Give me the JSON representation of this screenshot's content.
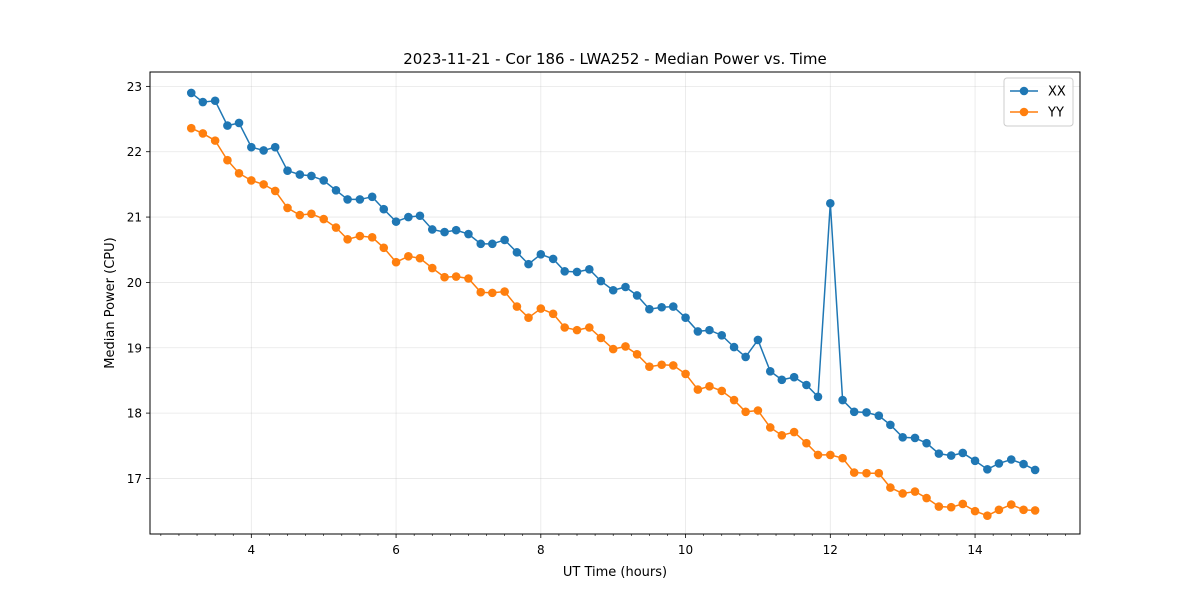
{
  "chart_data": {
    "type": "line",
    "title": "2023-11-21 - Cor 186 - LWA252 - Median Power vs. Time",
    "xlabel": "UT Time (hours)",
    "ylabel": "Median Power (CPU)",
    "xlim": [
      2.6,
      15.45
    ],
    "ylim": [
      16.15,
      23.22
    ],
    "xticks": [
      4,
      6,
      8,
      10,
      12,
      14
    ],
    "xtick_labels": [
      "4",
      "6",
      "8",
      "10",
      "12",
      "14"
    ],
    "yticks": [
      17,
      18,
      19,
      20,
      21,
      22,
      23
    ],
    "ytick_labels": [
      "17",
      "18",
      "19",
      "20",
      "21",
      "22",
      "23"
    ],
    "grid": true,
    "legend": "top-right",
    "x": [
      3.17,
      3.33,
      3.5,
      3.67,
      3.83,
      4.0,
      4.17,
      4.33,
      4.5,
      4.67,
      4.83,
      5.0,
      5.17,
      5.33,
      5.5,
      5.67,
      5.83,
      6.0,
      6.17,
      6.33,
      6.5,
      6.67,
      6.83,
      7.0,
      7.17,
      7.33,
      7.5,
      7.67,
      7.83,
      8.0,
      8.17,
      8.33,
      8.5,
      8.67,
      8.83,
      9.0,
      9.17,
      9.33,
      9.5,
      9.67,
      9.83,
      10.0,
      10.17,
      10.33,
      10.5,
      10.67,
      10.83,
      11.0,
      11.17,
      11.33,
      11.5,
      11.67,
      11.83,
      12.0,
      12.17,
      12.33,
      12.5,
      12.67,
      12.83,
      13.0,
      13.17,
      13.33,
      13.5,
      13.67,
      13.83,
      14.0,
      14.17,
      14.33,
      14.5,
      14.67,
      14.83
    ],
    "series": [
      {
        "name": "XX",
        "color": "#1f77b4",
        "values": [
          22.9,
          22.76,
          22.78,
          22.4,
          22.44,
          22.07,
          22.02,
          22.07,
          21.71,
          21.65,
          21.63,
          21.56,
          21.41,
          21.27,
          21.27,
          21.31,
          21.12,
          20.93,
          21.0,
          21.02,
          20.81,
          20.77,
          20.8,
          20.74,
          20.59,
          20.59,
          20.65,
          20.46,
          20.28,
          20.43,
          20.36,
          20.17,
          20.16,
          20.2,
          20.02,
          19.88,
          19.93,
          19.8,
          19.59,
          19.62,
          19.63,
          19.46,
          19.25,
          19.27,
          19.19,
          19.01,
          18.86,
          19.12,
          18.64,
          18.51,
          18.55,
          18.43,
          18.25,
          21.21,
          18.2,
          18.02,
          18.01,
          17.96,
          17.82,
          17.63,
          17.62,
          17.54,
          17.38,
          17.35,
          17.39,
          17.27,
          17.14,
          17.23,
          17.29,
          17.22,
          17.13
        ]
      },
      {
        "name": "YY",
        "color": "#ff7f0e",
        "values": [
          22.36,
          22.28,
          22.17,
          21.87,
          21.67,
          21.56,
          21.5,
          21.4,
          21.14,
          21.03,
          21.05,
          20.97,
          20.84,
          20.66,
          20.71,
          20.69,
          20.53,
          20.31,
          20.4,
          20.37,
          20.22,
          20.08,
          20.09,
          20.06,
          19.85,
          19.84,
          19.86,
          19.63,
          19.46,
          19.6,
          19.52,
          19.31,
          19.27,
          19.31,
          19.15,
          18.98,
          19.02,
          18.9,
          18.71,
          18.74,
          18.73,
          18.6,
          18.36,
          18.41,
          18.34,
          18.2,
          18.02,
          18.04,
          17.78,
          17.66,
          17.71,
          17.54,
          17.36,
          17.36,
          17.31,
          17.09,
          17.08,
          17.08,
          16.86,
          16.77,
          16.8,
          16.7,
          16.57,
          16.56,
          16.61,
          16.5,
          16.43,
          16.52,
          16.6,
          16.52,
          16.51
        ]
      }
    ]
  }
}
